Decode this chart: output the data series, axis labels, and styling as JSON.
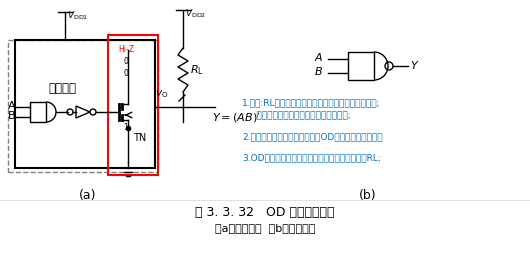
{
  "title": "图 3. 3. 32   OD 输出的与非门",
  "subtitle": "（a）电路结构  （b）逻辑符号",
  "bg_color": "#ffffff",
  "text_color": "#000000",
  "blue_color": "#0070c0",
  "red_color": "#ff0000",
  "annotation1": "1.假设:RL断开，则输入电平时，截至区，输出为高阻;",
  "annotation1b": "     输入高电平时，饱和区，输出为低电平;",
  "annotation2": "2.与非门后加非门为了满足此为OD输出的与非门逻辑；",
  "annotation3": "3.OD不能输出高电平，除非输出段外接上拉电阻RL;",
  "label_inner": "内部逻辑",
  "label_tn": "TN",
  "label_hiZ": "Hi-Z",
  "label_fig_a": "(a)",
  "label_fig_b": "(b)"
}
